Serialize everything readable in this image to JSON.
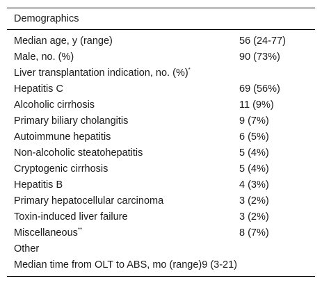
{
  "table": {
    "header": "Demographics",
    "rows": [
      {
        "label": "Median age, y (range)",
        "value": "56 (24-77)",
        "sup": ""
      },
      {
        "label": "Male, no. (%)",
        "value": "90 (73%)",
        "sup": ""
      },
      {
        "label": "Liver transplantation indication, no. (%)",
        "value": "",
        "sup": "*"
      },
      {
        "label": "Hepatitis C",
        "value": "69 (56%)",
        "sup": ""
      },
      {
        "label": "Alcoholic cirrhosis",
        "value": "11 (9%)",
        "sup": ""
      },
      {
        "label": "Primary biliary cholangitis",
        "value": "9 (7%)",
        "sup": ""
      },
      {
        "label": "Autoimmune hepatitis",
        "value": "6 (5%)",
        "sup": ""
      },
      {
        "label": "Non-alcoholic steatohepatitis",
        "value": "5 (4%)",
        "sup": ""
      },
      {
        "label": "Cryptogenic cirrhosis",
        "value": "5 (4%)",
        "sup": ""
      },
      {
        "label": "Hepatitis B",
        "value": "4 (3%)",
        "sup": ""
      },
      {
        "label": "Primary hepatocellular carcinoma",
        "value": "3 (2%)",
        "sup": ""
      },
      {
        "label": "Toxin-induced liver failure",
        "value": "3 (2%)",
        "sup": ""
      },
      {
        "label": "Miscellaneous",
        "value": "8 (7%)",
        "sup": "**"
      },
      {
        "label": "Other",
        "value": "",
        "sup": ""
      },
      {
        "label": "Median time from OLT to ABS, mo (range)",
        "value": "9 (3-21)",
        "sup": ""
      }
    ]
  }
}
